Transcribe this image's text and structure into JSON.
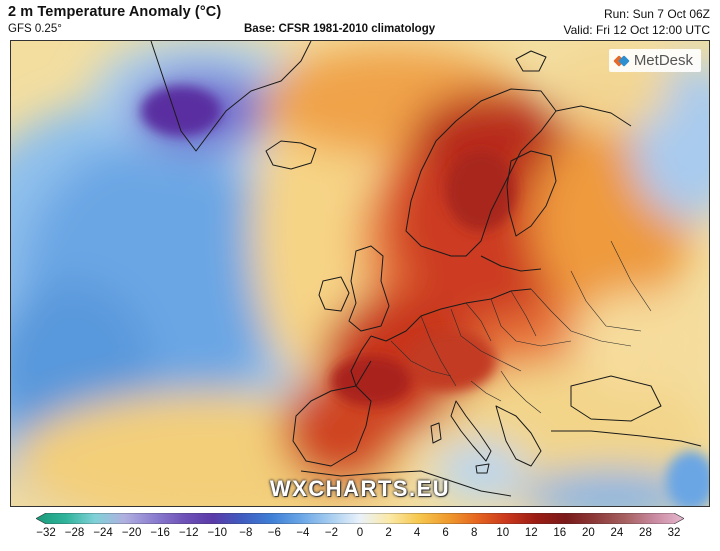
{
  "header": {
    "title": "2 m Temperature Anomaly (°C)",
    "model": "GFS 0.25°",
    "base": "Base: CFSR 1981-2010 climatology",
    "run": "Run: Sun 7 Oct 06Z",
    "valid": "Valid: Fri 12 Oct 12:00 UTC"
  },
  "map": {
    "logo_text": "MetDesk",
    "watermark": "WXCHARTS.EU"
  },
  "colorbar": {
    "ticks": [
      "−32",
      "−28",
      "−24",
      "−20",
      "−16",
      "−12",
      "−10",
      "−8",
      "−6",
      "−4",
      "−2",
      "0",
      "2",
      "4",
      "6",
      "8",
      "10",
      "12",
      "16",
      "20",
      "24",
      "28",
      "32"
    ],
    "colors": [
      "#1a9a7a",
      "#2fb39a",
      "#7fd1d8",
      "#b0b0e0",
      "#8c7fd0",
      "#6f53b8",
      "#5a3aa8",
      "#3f5cc0",
      "#3f7fd6",
      "#6aa6e6",
      "#a7cdf0",
      "#eaf2fa",
      "#fbe9a6",
      "#f6c74e",
      "#ef9a2e",
      "#e56420",
      "#c9371c",
      "#9a1c14",
      "#7a1a1a",
      "#8e3a3a",
      "#a66060",
      "#c98aa0",
      "#e6b8d0"
    ]
  },
  "colors": {
    "cold_deep": "#5a2ea0",
    "cold": "#5aa0e0",
    "cool": "#c8e0f4",
    "neutral": "#f4ecc8",
    "warm": "#f2b84a",
    "hot": "#e0642a",
    "very_hot": "#b8261a",
    "coast": "#1a1a1a"
  }
}
